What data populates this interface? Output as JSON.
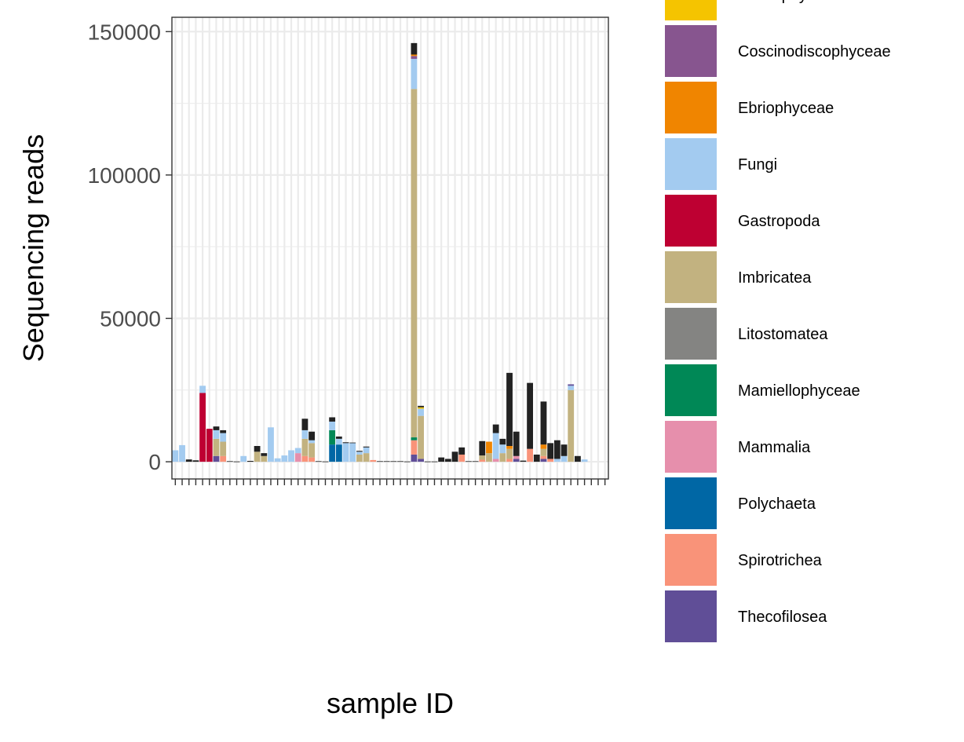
{
  "chart_data": {
    "type": "bar",
    "stacked": true,
    "xlabel": "sample ID",
    "ylabel": "Sequencing reads",
    "ylim": [
      -6000,
      155000
    ],
    "y_ticks": [
      0,
      50000,
      100000,
      150000
    ],
    "y_tick_labels": [
      "0",
      "50000",
      "100000",
      "150000"
    ],
    "grid": true,
    "legend_position": "right",
    "x_tick_labels_note": "96 vertical overlapping sample labels, illegible",
    "legend": [
      {
        "name": "Bolidophyceae",
        "color": "#F5C400"
      },
      {
        "name": "Coscinodiscophyceae",
        "color": "#87558F"
      },
      {
        "name": "Ebriophyceae",
        "color": "#F08500"
      },
      {
        "name": "Fungi",
        "color": "#A3CBF0"
      },
      {
        "name": "Gastropoda",
        "color": "#BE0032"
      },
      {
        "name": "Imbricatea",
        "color": "#C2B280"
      },
      {
        "name": "Litostomatea",
        "color": "#848482"
      },
      {
        "name": "Mamiellophyceae",
        "color": "#008856"
      },
      {
        "name": "Mammalia",
        "color": "#E68FAC"
      },
      {
        "name": "Polychaeta",
        "color": "#0067A5"
      },
      {
        "name": "Spirotrichea",
        "color": "#F99379"
      },
      {
        "name": "Thecofilosea",
        "color": "#604E97"
      }
    ],
    "other_color": "#222222",
    "bars": [
      {
        "segments": [
          [
            "Fungi",
            4000
          ]
        ]
      },
      {
        "segments": [
          [
            "Fungi",
            5800
          ]
        ]
      },
      {
        "segments": [
          [
            "other",
            800
          ]
        ]
      },
      {
        "segments": [
          [
            "other",
            500
          ]
        ]
      },
      {
        "segments": [
          [
            "Gastropoda",
            24000
          ],
          [
            "Fungi",
            2500
          ]
        ]
      },
      {
        "segments": [
          [
            "Gastropoda",
            11500
          ]
        ]
      },
      {
        "segments": [
          [
            "Thecofilosea",
            2000
          ],
          [
            "Imbricatea",
            6000
          ],
          [
            "Fungi",
            3000
          ],
          [
            "other",
            1300
          ]
        ]
      },
      {
        "segments": [
          [
            "Spirotrichea",
            2000
          ],
          [
            "Imbricatea",
            5000
          ],
          [
            "Fungi",
            3000
          ],
          [
            "other",
            1000
          ]
        ]
      },
      {
        "segments": [
          [
            "other",
            200
          ]
        ]
      },
      {
        "segments": [
          [
            "other",
            100
          ]
        ]
      },
      {
        "segments": [
          [
            "Fungi",
            2000
          ]
        ]
      },
      {
        "segments": [
          [
            "other",
            300
          ]
        ]
      },
      {
        "segments": [
          [
            "Imbricatea",
            3500
          ],
          [
            "other",
            2000
          ]
        ]
      },
      {
        "segments": [
          [
            "Imbricatea",
            2000
          ],
          [
            "other",
            1000
          ]
        ]
      },
      {
        "segments": [
          [
            "Fungi",
            12000
          ]
        ]
      },
      {
        "segments": [
          [
            "Fungi",
            1200
          ]
        ]
      },
      {
        "segments": [
          [
            "Fungi",
            2200
          ]
        ]
      },
      {
        "segments": [
          [
            "Fungi",
            4000
          ]
        ]
      },
      {
        "segments": [
          [
            "Mammalia",
            3000
          ],
          [
            "Fungi",
            1800
          ]
        ]
      },
      {
        "segments": [
          [
            "Spirotrichea",
            2000
          ],
          [
            "Imbricatea",
            6000
          ],
          [
            "Fungi",
            3000
          ],
          [
            "other",
            4000
          ]
        ]
      },
      {
        "segments": [
          [
            "Spirotrichea",
            1500
          ],
          [
            "Imbricatea",
            5000
          ],
          [
            "Fungi",
            1000
          ],
          [
            "other",
            3000
          ]
        ]
      },
      {
        "segments": [
          [
            "other",
            200
          ]
        ]
      },
      {
        "segments": [
          [
            "other",
            100
          ]
        ]
      },
      {
        "segments": [
          [
            "Polychaeta",
            6000
          ],
          [
            "Mamiellophyceae",
            5000
          ],
          [
            "Fungi",
            3000
          ],
          [
            "other",
            1500
          ]
        ]
      },
      {
        "segments": [
          [
            "Polychaeta",
            6000
          ],
          [
            "Fungi",
            2000
          ],
          [
            "other",
            800
          ]
        ]
      },
      {
        "segments": [
          [
            "Fungi",
            6500
          ],
          [
            "other",
            300
          ]
        ]
      },
      {
        "segments": [
          [
            "Fungi",
            6500
          ],
          [
            "other",
            200
          ]
        ]
      },
      {
        "segments": [
          [
            "Imbricatea",
            2500
          ],
          [
            "Fungi",
            1000
          ],
          [
            "other",
            300
          ]
        ]
      },
      {
        "segments": [
          [
            "Imbricatea",
            3000
          ],
          [
            "Fungi",
            2000
          ],
          [
            "other",
            300
          ]
        ]
      },
      {
        "segments": [
          [
            "Spirotrichea",
            600
          ]
        ]
      },
      {
        "segments": [
          [
            "other",
            200
          ]
        ]
      },
      {
        "segments": [
          [
            "other",
            200
          ]
        ]
      },
      {
        "segments": [
          [
            "other",
            200
          ]
        ]
      },
      {
        "segments": [
          [
            "other",
            200
          ]
        ]
      },
      {
        "segments": [
          [
            "other",
            100
          ]
        ]
      },
      {
        "segments": [
          [
            "Thecofilosea",
            2500
          ],
          [
            "Spirotrichea",
            5000
          ],
          [
            "Mamiellophyceae",
            1000
          ],
          [
            "Imbricatea",
            121500
          ],
          [
            "Fungi",
            10500
          ],
          [
            "Coscinodiscophyceae",
            1000
          ],
          [
            "Ebriophyceae",
            500
          ],
          [
            "other",
            4000
          ]
        ]
      },
      {
        "segments": [
          [
            "Thecofilosea",
            1000
          ],
          [
            "Imbricatea",
            15000
          ],
          [
            "Fungi",
            2500
          ],
          [
            "Bolidophyceae",
            500
          ],
          [
            "other",
            500
          ]
        ]
      },
      {
        "segments": [
          [
            "other",
            100
          ]
        ]
      },
      {
        "segments": [
          [
            "other",
            100
          ]
        ]
      },
      {
        "segments": [
          [
            "other",
            1500
          ]
        ]
      },
      {
        "segments": [
          [
            "other",
            1000
          ]
        ]
      },
      {
        "segments": [
          [
            "other",
            3500
          ]
        ]
      },
      {
        "segments": [
          [
            "Spirotrichea",
            2500
          ],
          [
            "other",
            2500
          ]
        ]
      },
      {
        "segments": [
          [
            "other",
            200
          ]
        ]
      },
      {
        "segments": [
          [
            "other",
            200
          ]
        ]
      },
      {
        "segments": [
          [
            "Spirotrichea",
            700
          ],
          [
            "Imbricatea",
            1500
          ],
          [
            "other",
            5000
          ]
        ]
      },
      {
        "segments": [
          [
            "Imbricatea",
            3000
          ],
          [
            "Ebriophyceae",
            4000
          ]
        ]
      },
      {
        "segments": [
          [
            "Mammalia",
            1000
          ],
          [
            "Fungi",
            9000
          ],
          [
            "other",
            3000
          ]
        ]
      },
      {
        "segments": [
          [
            "Imbricatea",
            3000
          ],
          [
            "Fungi",
            3000
          ],
          [
            "other",
            2000
          ]
        ]
      },
      {
        "segments": [
          [
            "Spirotrichea",
            1000
          ],
          [
            "Imbricatea",
            3500
          ],
          [
            "Ebriophyceae",
            1000
          ],
          [
            "other",
            25500
          ]
        ]
      },
      {
        "segments": [
          [
            "Thecofilosea",
            1000
          ],
          [
            "Mammalia",
            1000
          ],
          [
            "other",
            8500
          ]
        ]
      },
      {
        "segments": [
          [
            "other",
            400
          ]
        ]
      },
      {
        "segments": [
          [
            "Spirotrichea",
            4500
          ],
          [
            "other",
            23000
          ]
        ]
      },
      {
        "segments": [
          [
            "other",
            2500
          ]
        ]
      },
      {
        "segments": [
          [
            "Thecofilosea",
            1000
          ],
          [
            "Spirotrichea",
            1000
          ],
          [
            "Imbricatea",
            2500
          ],
          [
            "Ebriophyceae",
            1500
          ],
          [
            "other",
            15000
          ]
        ]
      },
      {
        "segments": [
          [
            "Spirotrichea",
            1000
          ],
          [
            "other",
            5500
          ]
        ]
      },
      {
        "segments": [
          [
            "Fungi",
            1000
          ],
          [
            "other",
            6500
          ]
        ]
      },
      {
        "segments": [
          [
            "Fungi",
            2000
          ],
          [
            "other",
            4000
          ]
        ]
      },
      {
        "segments": [
          [
            "Imbricatea",
            25000
          ],
          [
            "Fungi",
            1500
          ],
          [
            "Thecofilosea",
            500
          ]
        ]
      },
      {
        "segments": [
          [
            "other",
            2000
          ]
        ]
      },
      {
        "segments": [
          [
            "Fungi",
            800
          ]
        ]
      }
    ]
  }
}
